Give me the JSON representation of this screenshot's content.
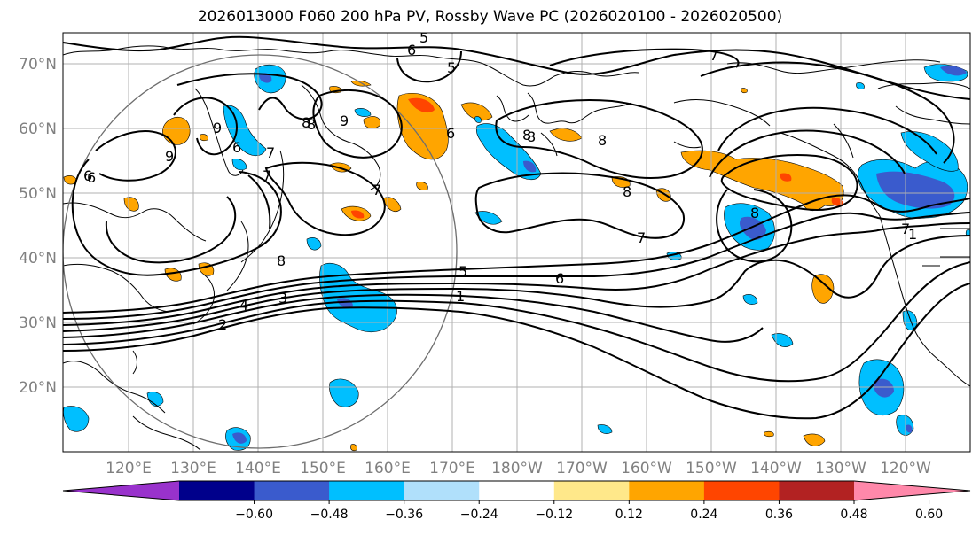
{
  "title": "2026013000 F060 200 hPa PV, Rossby Wave PC (2026020100 - 2026020500)",
  "lat_labels": [
    "70°N",
    "60°N",
    "50°N",
    "40°N",
    "30°N",
    "20°N"
  ],
  "lon_labels": [
    "120°E",
    "130°E",
    "140°E",
    "150°E",
    "160°E",
    "170°E",
    "180°W",
    "170°W",
    "160°W",
    "150°W",
    "140°W",
    "130°W",
    "120°W"
  ],
  "colorbar": {
    "tick_labels": [
      "−0.60",
      "−0.48",
      "−0.36",
      "−0.24",
      "−0.12",
      "0.12",
      "0.24",
      "0.36",
      "0.48",
      "0.60"
    ],
    "colors": [
      "#9932cc",
      "#00008b",
      "#3a5bcd",
      "#00bfff",
      "#b0e0fb",
      "#ffffff",
      "#ffe88a",
      "#ffa500",
      "#ff4500",
      "#b22222",
      "#ff88aa"
    ]
  },
  "contour_labels": [
    "5",
    "6",
    "8",
    "7",
    "6",
    "5",
    "1",
    "9",
    "6",
    "8",
    "8",
    "8",
    "7",
    "9",
    "6",
    "9",
    "7",
    "8",
    "8",
    "7",
    "6",
    "5",
    "4",
    "3",
    "2",
    "1",
    "6",
    "8",
    "7",
    "7",
    "8"
  ],
  "colors": {
    "positive": "#ffa500",
    "strong_positive": "#ff4500",
    "negative": "#00bfff",
    "strong_negative": "#3a5bcd"
  }
}
